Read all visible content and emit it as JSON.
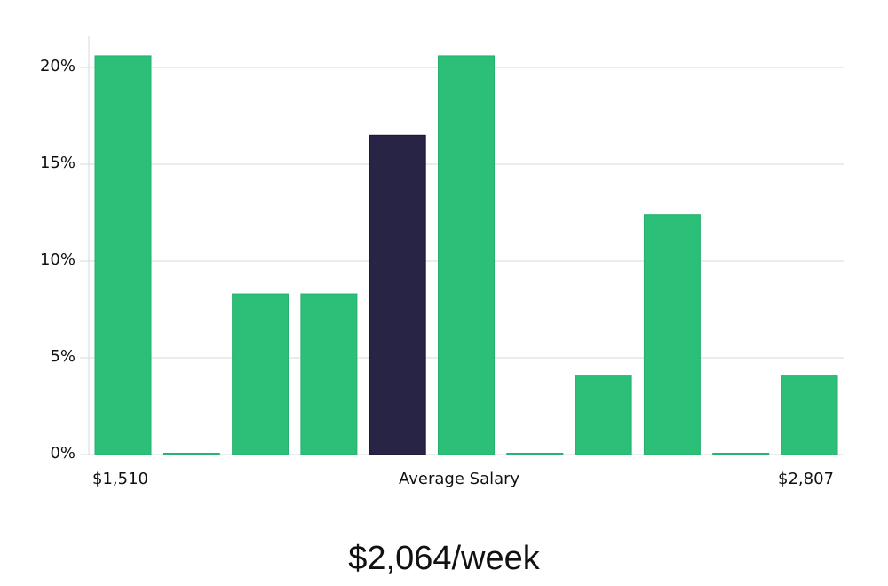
{
  "chart_data": {
    "type": "bar",
    "title": "",
    "xlabel": "Average Salary",
    "ylabel": "",
    "categories": [
      "$1,510",
      "",
      "",
      "",
      "",
      "",
      "",
      "",
      "",
      "",
      "$2,807"
    ],
    "values": [
      20.6,
      0,
      8.3,
      8.3,
      16.5,
      20.6,
      0,
      4.1,
      12.4,
      0,
      4.1
    ],
    "highlight_index": 4,
    "ylim": [
      0,
      21.7
    ],
    "yticks": [
      "0%",
      "5%",
      "10%",
      "15%",
      "20%"
    ],
    "ytick_values": [
      0,
      5,
      10,
      15,
      20
    ],
    "grid": true,
    "colors": {
      "bar": "#2bbf78",
      "highlight": "#272446",
      "grid": "#d9d9d9"
    }
  },
  "x_axis": {
    "left_label": "$1,510",
    "center_label": "Average Salary",
    "right_label": "$2,807"
  },
  "footer": {
    "value": "$2,064/week"
  }
}
